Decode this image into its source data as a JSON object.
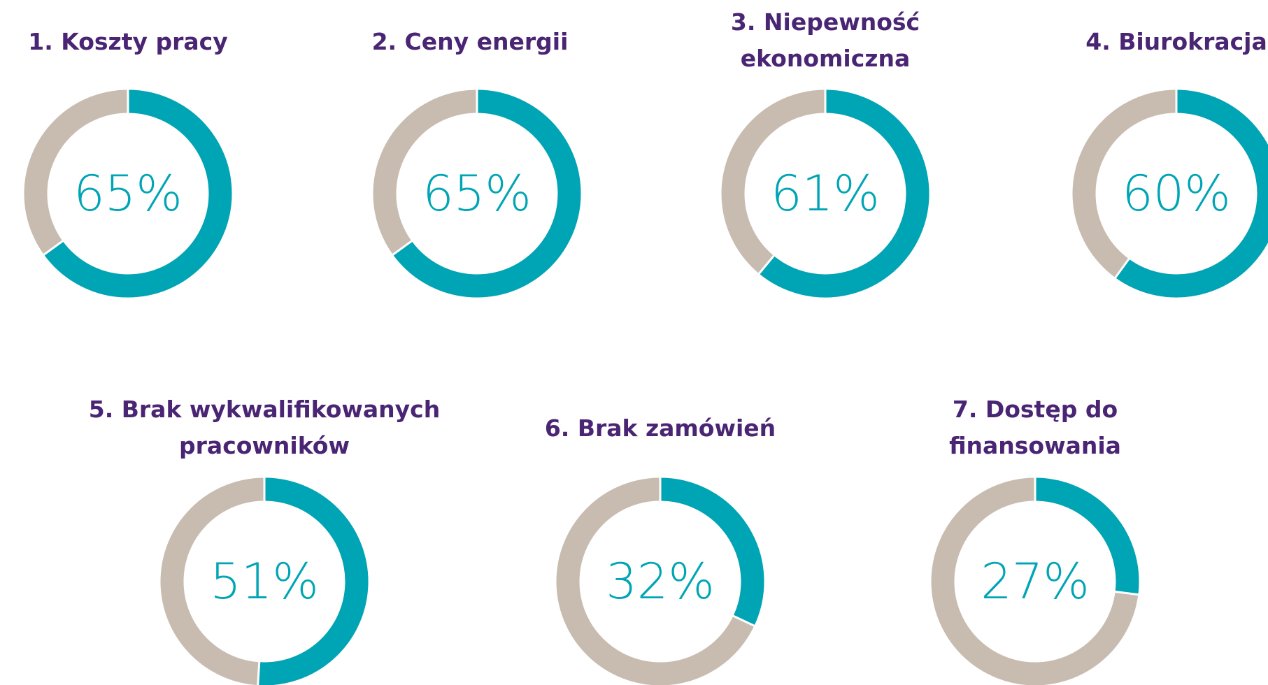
{
  "chart_data": [
    {
      "type": "donut",
      "title": "1. Koszty pracy",
      "values": [
        65
      ],
      "value_labels": [
        "65%"
      ],
      "color": "#00a5b5",
      "track_color": "#c8bcb0"
    },
    {
      "type": "donut",
      "title": "2. Ceny energii",
      "values": [
        65
      ],
      "value_labels": [
        "65%"
      ],
      "color": "#00a5b5",
      "track_color": "#c8bcb0"
    },
    {
      "type": "donut",
      "title": "3. Niepewność ekonomiczna",
      "values": [
        61
      ],
      "value_labels": [
        "61%"
      ],
      "color": "#00a5b5",
      "track_color": "#c8bcb0"
    },
    {
      "type": "donut",
      "title": "4. Biurokracja",
      "values": [
        60
      ],
      "value_labels": [
        "60%"
      ],
      "color": "#00a5b5",
      "track_color": "#c8bcb0"
    },
    {
      "type": "donut",
      "title": "5. Brak wykwalifikowanych pracowników",
      "values": [
        51
      ],
      "value_labels": [
        "51%"
      ],
      "color": "#00a5b5",
      "track_color": "#c8bcb0"
    },
    {
      "type": "donut",
      "title": "6. Brak zamówień",
      "values": [
        32
      ],
      "value_labels": [
        "32%"
      ],
      "color": "#00a5b5",
      "track_color": "#c8bcb0"
    },
    {
      "type": "donut",
      "title": "7. Dostęp do finansowania",
      "values": [
        27
      ],
      "value_labels": [
        "27%"
      ],
      "color": "#00a5b5",
      "track_color": "#c8bcb0"
    }
  ]
}
